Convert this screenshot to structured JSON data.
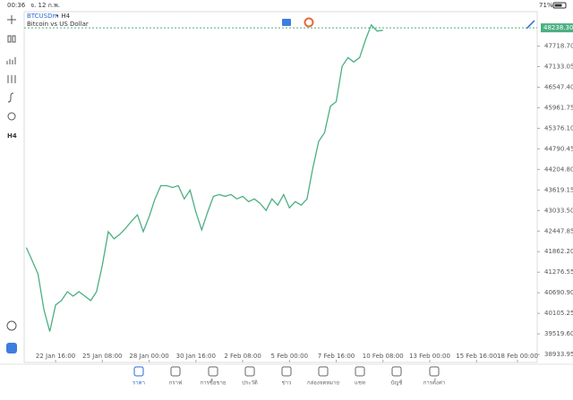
{
  "status_bar": {
    "time": "00:36",
    "date": "จ. 12 ก.พ.",
    "battery": "71%"
  },
  "header": {
    "symbol": "BTCUSDm",
    "timeframe": "• H4",
    "description": "Bitcoin vs US Dollar"
  },
  "toolbar": {
    "timeframe": "H4"
  },
  "chart_data": {
    "type": "line",
    "color": "#4caf82",
    "x": [
      "21 Jan 00:00",
      "21 Jan 08:00",
      "21 Jan 16:00",
      "22 Jan 00:00",
      "22 Jan 08:00",
      "22 Jan 16:00",
      "23 Jan 00:00",
      "23 Jan 08:00",
      "23 Jan 16:00",
      "24 Jan 00:00",
      "24 Jan 08:00",
      "24 Jan 16:00",
      "25 Jan 00:00",
      "25 Jan 08:00",
      "25 Jan 16:00",
      "26 Jan 00:00",
      "26 Jan 08:00",
      "26 Jan 16:00",
      "27 Jan 00:00",
      "27 Jan 08:00",
      "27 Jan 16:00",
      "28 Jan 00:00",
      "28 Jan 08:00",
      "28 Jan 16:00",
      "29 Jan 00:00",
      "29 Jan 08:00",
      "29 Jan 16:00",
      "30 Jan 00:00",
      "30 Jan 08:00",
      "30 Jan 16:00",
      "31 Jan 00:00",
      "31 Jan 08:00",
      "31 Jan 16:00",
      "1 Feb 00:00",
      "1 Feb 08:00",
      "1 Feb 16:00",
      "2 Feb 00:00",
      "2 Feb 08:00",
      "2 Feb 16:00",
      "3 Feb 00:00",
      "3 Feb 08:00",
      "3 Feb 16:00",
      "4 Feb 00:00",
      "4 Feb 08:00",
      "4 Feb 16:00",
      "5 Feb 00:00",
      "5 Feb 08:00",
      "5 Feb 16:00",
      "6 Feb 00:00",
      "6 Feb 08:00",
      "6 Feb 16:00",
      "7 Feb 00:00",
      "7 Feb 08:00",
      "7 Feb 16:00",
      "8 Feb 00:00",
      "8 Feb 08:00",
      "8 Feb 16:00",
      "9 Feb 00:00",
      "9 Feb 08:00",
      "9 Feb 16:00",
      "10 Feb 00:00",
      "10 Feb 08:00"
    ],
    "values": [
      41979,
      41602,
      41224,
      40217,
      39588,
      40343,
      40469,
      40721,
      40595,
      40721,
      40595,
      40469,
      40721,
      41476,
      42432,
      42231,
      42357,
      42533,
      42734,
      42911,
      42432,
      42860,
      43364,
      43741,
      43741,
      43691,
      43741,
      43364,
      43615,
      42986,
      42483,
      42986,
      43439,
      43489,
      43439,
      43489,
      43364,
      43439,
      43288,
      43364,
      43238,
      43036,
      43364,
      43187,
      43489,
      43112,
      43288,
      43187,
      43364,
      44245,
      45000,
      45251,
      46006,
      46132,
      47139,
      47391,
      47265,
      47391,
      47894,
      48322,
      48146,
      48171
    ],
    "xlim": [
      "20 Jan 21:00",
      "19 Feb 03:00"
    ],
    "ylim": [
      38707,
      48700
    ],
    "xticks": [
      "22 Jan 16:00",
      "25 Jan 08:00",
      "28 Jan 00:00",
      "30 Jan 16:00",
      "2 Feb 08:00",
      "5 Feb 00:00",
      "7 Feb 16:00",
      "10 Feb 08:00",
      "13 Feb 00:00",
      "15 Feb 16:00",
      "18 Feb 00:00"
    ],
    "yticks": [
      {
        "value": 47718.7,
        "label": "47718.70"
      },
      47133.05,
      {
        "value": 46547.4,
        "label": "46547.40"
      },
      45961.75,
      {
        "value": 45376.1,
        "label": "45376.10"
      },
      44790.45,
      {
        "value": 44204.8,
        "label": "44204.80"
      },
      43619.15,
      {
        "value": 43033.5,
        "label": "43033.50"
      },
      42447.85,
      {
        "value": 41862.2,
        "label": "41862.20"
      },
      41276.55,
      {
        "value": 40690.9,
        "label": "40690.90"
      },
      40105.25,
      {
        "value": 39519.6,
        "label": "39519.60"
      },
      38933.95
    ],
    "last_price": {
      "value": 48238.3,
      "label": "48238.30"
    }
  },
  "nav": [
    "ราคา",
    "กราฟ",
    "การซื้อขาย",
    "ประวัติ",
    "ข่าว",
    "กล่องจดหมาย",
    "แชท",
    "บัญชี",
    "การตั้งค่า"
  ]
}
